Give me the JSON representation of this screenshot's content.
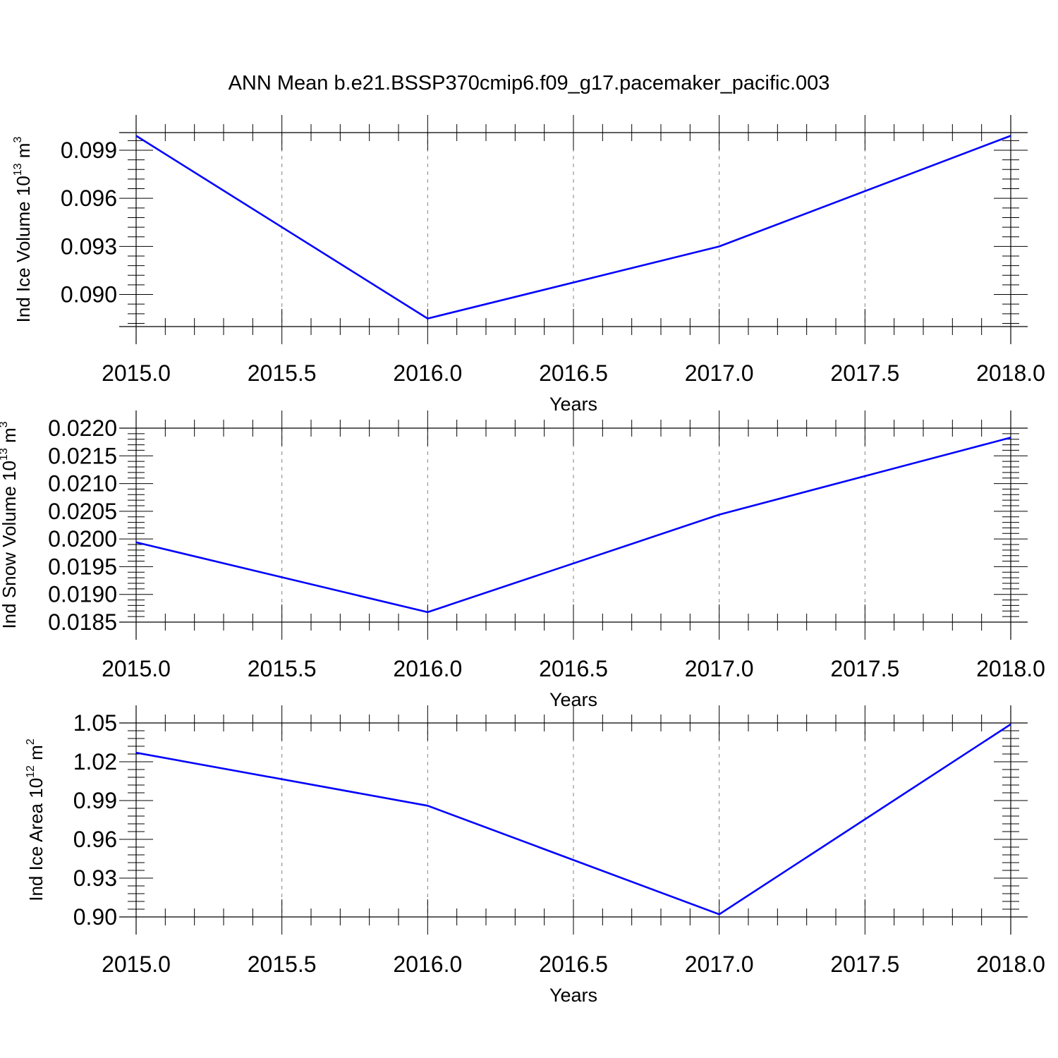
{
  "figure": {
    "title": "ANN Mean b.e21.BSSP370cmip6.f09_g17.pacemaker_pacific.003"
  },
  "colors": {
    "line": "#0000ff",
    "axis": "#000000",
    "grid": "#808080",
    "background": "#ffffff"
  },
  "chart_data": [
    {
      "type": "line",
      "title": "ANN Mean b.e21.BSSP370cmip6.f09_g17.pacemaker_pacific.003",
      "xlabel": "Years",
      "ylabel": {
        "main": "Ind Ice Volume 10",
        "exp": "13",
        "unit": " m",
        "unit_exp": "3"
      },
      "x": [
        2015.0,
        2016.0,
        2017.0,
        2018.0
      ],
      "series": [
        {
          "values": [
            0.0999,
            0.0885,
            0.093,
            0.0999
          ]
        }
      ],
      "xlim": [
        2015.0,
        2018.0
      ],
      "ylim": [
        0.088,
        0.1001
      ],
      "xticks": [
        2015.0,
        2015.5,
        2016.0,
        2016.5,
        2017.0,
        2017.5,
        2018.0
      ],
      "xtick_labels": [
        "2015.0",
        "2015.5",
        "2016.0",
        "2016.5",
        "2017.0",
        "2017.5",
        "2018.0"
      ],
      "yticks": [
        0.09,
        0.093,
        0.096,
        0.099
      ],
      "ytick_labels": [
        "0.090",
        "0.093",
        "0.096",
        "0.099"
      ],
      "grid": "vertical dashed"
    },
    {
      "type": "line",
      "xlabel": "Years",
      "ylabel": {
        "main": "Ind Snow Volume 10",
        "exp": "13",
        "unit": " m",
        "unit_exp": "3"
      },
      "x": [
        2015.0,
        2016.0,
        2017.0,
        2018.0
      ],
      "series": [
        {
          "values": [
            0.01994,
            0.01868,
            0.02044,
            0.02183
          ]
        }
      ],
      "xlim": [
        2015.0,
        2018.0
      ],
      "ylim": [
        0.0185,
        0.022
      ],
      "xticks": [
        2015.0,
        2015.5,
        2016.0,
        2016.5,
        2017.0,
        2017.5,
        2018.0
      ],
      "xtick_labels": [
        "2015.0",
        "2015.5",
        "2016.0",
        "2016.5",
        "2017.0",
        "2017.5",
        "2018.0"
      ],
      "yticks": [
        0.0185,
        0.019,
        0.0195,
        0.02,
        0.0205,
        0.021,
        0.0215,
        0.022
      ],
      "ytick_labels": [
        "0.0185",
        "0.0190",
        "0.0195",
        "0.0200",
        "0.0205",
        "0.0210",
        "0.0215",
        "0.0220"
      ],
      "grid": "vertical dashed"
    },
    {
      "type": "line",
      "xlabel": "Years",
      "ylabel": {
        "main": "Ind Ice Area 10",
        "exp": "12",
        "unit": " m",
        "unit_exp": "2"
      },
      "x": [
        2015.0,
        2016.0,
        2017.0,
        2018.0
      ],
      "series": [
        {
          "values": [
            1.027,
            0.986,
            0.902,
            1.049
          ]
        }
      ],
      "xlim": [
        2015.0,
        2018.0
      ],
      "ylim": [
        0.9,
        1.05
      ],
      "xticks": [
        2015.0,
        2015.5,
        2016.0,
        2016.5,
        2017.0,
        2017.5,
        2018.0
      ],
      "xtick_labels": [
        "2015.0",
        "2015.5",
        "2016.0",
        "2016.5",
        "2017.0",
        "2017.5",
        "2018.0"
      ],
      "yticks": [
        0.9,
        0.93,
        0.96,
        0.99,
        1.02,
        1.05
      ],
      "ytick_labels": [
        "0.90",
        "0.93",
        "0.96",
        "0.99",
        "1.02",
        "1.05"
      ],
      "grid": "vertical dashed"
    }
  ]
}
